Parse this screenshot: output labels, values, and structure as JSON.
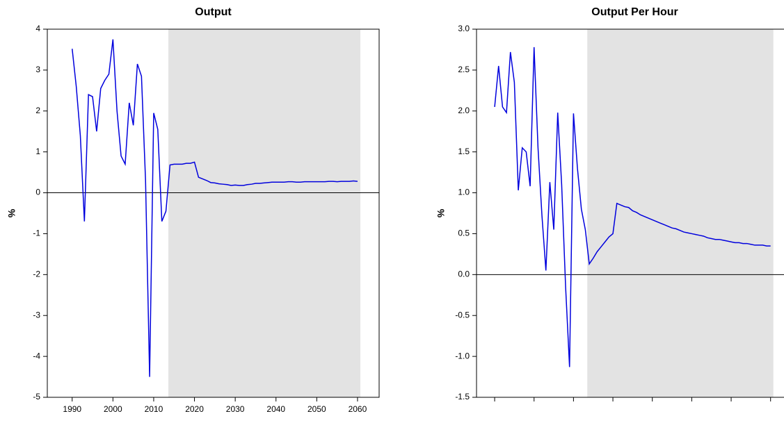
{
  "chart_data": [
    {
      "type": "line",
      "title": "Output",
      "ylabel": "%",
      "x": [
        1990,
        1991,
        1992,
        1993,
        1994,
        1995,
        1996,
        1997,
        1998,
        1999,
        2000,
        2001,
        2002,
        2003,
        2004,
        2005,
        2006,
        2007,
        2008,
        2009,
        2010,
        2011,
        2012,
        2013,
        2014,
        2015,
        2016,
        2017,
        2018,
        2019,
        2020,
        2021,
        2022,
        2023,
        2024,
        2025,
        2026,
        2027,
        2028,
        2029,
        2030,
        2031,
        2032,
        2033,
        2034,
        2035,
        2036,
        2037,
        2038,
        2039,
        2040,
        2041,
        2042,
        2043,
        2044,
        2045,
        2046,
        2047,
        2048,
        2049,
        2050,
        2051,
        2052,
        2053,
        2054,
        2055,
        2056,
        2057,
        2058,
        2059,
        2060
      ],
      "series": [
        {
          "color": "#0000dd",
          "values": [
            3.52,
            2.6,
            1.4,
            -0.7,
            2.4,
            2.35,
            1.5,
            2.55,
            2.75,
            2.9,
            3.75,
            2.0,
            0.9,
            0.7,
            2.2,
            1.65,
            3.15,
            2.85,
            0.3,
            -4.5,
            1.95,
            1.55,
            -0.7,
            -0.45,
            0.68,
            0.7,
            0.7,
            0.7,
            0.72,
            0.72,
            0.75,
            0.38,
            0.34,
            0.3,
            0.25,
            0.24,
            0.22,
            0.21,
            0.2,
            0.18,
            0.19,
            0.18,
            0.18,
            0.2,
            0.21,
            0.23,
            0.23,
            0.24,
            0.25,
            0.26,
            0.26,
            0.26,
            0.26,
            0.27,
            0.27,
            0.26,
            0.26,
            0.27,
            0.27,
            0.27,
            0.27,
            0.27,
            0.27,
            0.28,
            0.28,
            0.27,
            0.28,
            0.28,
            0.28,
            0.29,
            0.28
          ]
        }
      ],
      "xlim": [
        1983.9,
        2065.3
      ],
      "xticks": [
        1990,
        2000,
        2010,
        2020,
        2030,
        2040,
        2050,
        2060
      ],
      "xtick_labels": true,
      "ylim": [
        -5,
        4
      ],
      "yticks": [
        -5,
        -4,
        -3,
        -2,
        -1,
        0,
        1,
        2,
        3,
        4
      ],
      "shaded_range": [
        2013.6,
        2060.7
      ],
      "shade_color": "#e3e3e3",
      "hline": 0
    },
    {
      "type": "line",
      "title": "Output Per Hour",
      "ylabel": "%",
      "x": [
        1990,
        1991,
        1992,
        1993,
        1994,
        1995,
        1996,
        1997,
        1998,
        1999,
        2000,
        2001,
        2002,
        2003,
        2004,
        2005,
        2006,
        2007,
        2008,
        2009,
        2010,
        2011,
        2012,
        2013,
        2014,
        2015,
        2016,
        2017,
        2018,
        2019,
        2020,
        2021,
        2022,
        2023,
        2024,
        2025,
        2026,
        2027,
        2028,
        2029,
        2030,
        2031,
        2032,
        2033,
        2034,
        2035,
        2036,
        2037,
        2038,
        2039,
        2040,
        2041,
        2042,
        2043,
        2044,
        2045,
        2046,
        2047,
        2048,
        2049,
        2050,
        2051,
        2052,
        2053,
        2054,
        2055,
        2056,
        2057,
        2058,
        2059,
        2060
      ],
      "series": [
        {
          "color": "#0000dd",
          "values": [
            2.05,
            2.55,
            2.05,
            1.98,
            2.72,
            2.35,
            1.03,
            1.55,
            1.5,
            1.08,
            2.78,
            1.55,
            0.72,
            0.05,
            1.13,
            0.55,
            1.98,
            1.1,
            -0.15,
            -1.13,
            1.97,
            1.3,
            0.8,
            0.55,
            0.13,
            0.2,
            0.28,
            0.34,
            0.4,
            0.46,
            0.5,
            0.87,
            0.85,
            0.83,
            0.82,
            0.78,
            0.76,
            0.73,
            0.71,
            0.69,
            0.67,
            0.65,
            0.63,
            0.61,
            0.59,
            0.57,
            0.56,
            0.54,
            0.52,
            0.51,
            0.5,
            0.49,
            0.48,
            0.47,
            0.45,
            0.44,
            0.43,
            0.43,
            0.42,
            0.41,
            0.4,
            0.39,
            0.39,
            0.38,
            0.38,
            0.37,
            0.36,
            0.36,
            0.36,
            0.35,
            0.35
          ]
        }
      ],
      "xlim": [
        1985.4,
        2065.7
      ],
      "xticks": [
        1990,
        2000,
        2010,
        2020,
        2030,
        2040,
        2050,
        2060
      ],
      "xtick_labels": false,
      "ylim": [
        -1.5,
        3.0
      ],
      "yticks": [
        {
          "value": -1.5,
          "label": "-1.5"
        },
        {
          "value": -1.0,
          "label": "-1.0"
        },
        {
          "value": -0.5,
          "label": "-0.5"
        },
        {
          "value": 0,
          "label": "0.0"
        },
        {
          "value": 0.5,
          "label": "0.5"
        },
        {
          "value": 1.0,
          "label": "1.0"
        },
        {
          "value": 1.5,
          "label": "1.5"
        },
        {
          "value": 2.0,
          "label": "2.0"
        },
        {
          "value": 2.5,
          "label": "2.5"
        },
        {
          "value": 3.0,
          "label": "3.0"
        }
      ],
      "shaded_range": [
        2013.5,
        2060.7
      ],
      "shade_color": "#e3e3e3",
      "hline": 0
    }
  ]
}
